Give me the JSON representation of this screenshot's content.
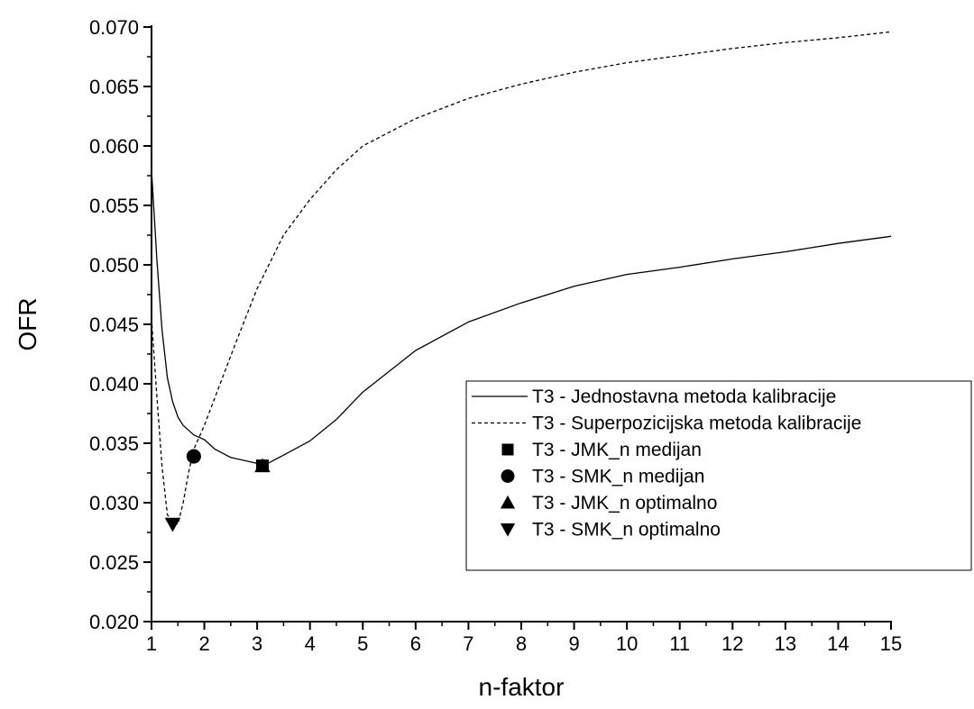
{
  "chart_data": {
    "type": "line",
    "xlabel": "n-faktor",
    "ylabel": "OFR",
    "xlim": [
      1,
      15
    ],
    "ylim": [
      0.02,
      0.07
    ],
    "x_ticks": [
      1,
      2,
      3,
      4,
      5,
      6,
      7,
      8,
      9,
      10,
      11,
      12,
      13,
      14,
      15
    ],
    "y_ticks": [
      "0.020",
      "0.025",
      "0.030",
      "0.035",
      "0.040",
      "0.045",
      "0.050",
      "0.055",
      "0.060",
      "0.065",
      "0.070"
    ],
    "grid": false,
    "legend_position": "center-right",
    "series": [
      {
        "name": "T3 - Jednostavna metoda kalibracije",
        "style": "solid",
        "x": [
          1.0,
          1.1,
          1.2,
          1.3,
          1.4,
          1.5,
          1.6,
          1.8,
          2.0,
          2.2,
          2.5,
          3.0,
          3.2,
          3.5,
          4.0,
          4.5,
          5.0,
          6.0,
          7.0,
          8.0,
          9.0,
          10.0,
          11.0,
          12.0,
          13.0,
          14.0,
          15.0
        ],
        "y": [
          0.058,
          0.0505,
          0.0445,
          0.0405,
          0.0385,
          0.0372,
          0.0365,
          0.0357,
          0.0353,
          0.0345,
          0.0338,
          0.0333,
          0.0333,
          0.034,
          0.0352,
          0.037,
          0.0393,
          0.0428,
          0.0452,
          0.0468,
          0.0482,
          0.0492,
          0.0498,
          0.0505,
          0.0511,
          0.0518,
          0.0524
        ]
      },
      {
        "name": "T3 - Superpozicijska metoda kalibracije",
        "style": "dashed",
        "x": [
          1.0,
          1.1,
          1.2,
          1.3,
          1.4,
          1.5,
          1.6,
          1.7,
          1.8,
          2.0,
          2.3,
          2.6,
          3.0,
          3.5,
          4.0,
          4.2,
          4.5,
          5.0,
          6.0,
          7.0,
          8.0,
          9.0,
          10.0,
          11.0,
          12.0,
          13.0,
          14.0,
          15.0
        ],
        "y": [
          0.0455,
          0.039,
          0.033,
          0.029,
          0.0283,
          0.0282,
          0.03,
          0.0325,
          0.0345,
          0.0365,
          0.04,
          0.0435,
          0.048,
          0.0525,
          0.0555,
          0.0565,
          0.058,
          0.06,
          0.0623,
          0.064,
          0.0652,
          0.0662,
          0.067,
          0.0676,
          0.0682,
          0.0687,
          0.0691,
          0.0696
        ]
      }
    ],
    "markers": [
      {
        "name": "T3 - JMK_n medijan",
        "symbol": "square",
        "x": 3.1,
        "y": 0.0331
      },
      {
        "name": "T3 - SMK_n medijan",
        "symbol": "circle",
        "x": 1.8,
        "y": 0.0339
      },
      {
        "name": "T3 - JMK_n optimalno",
        "symbol": "triangle-up",
        "x": 3.1,
        "y": 0.0331
      },
      {
        "name": "T3 - SMK_n optimalno",
        "symbol": "triangle-down",
        "x": 1.4,
        "y": 0.0282
      }
    ]
  }
}
